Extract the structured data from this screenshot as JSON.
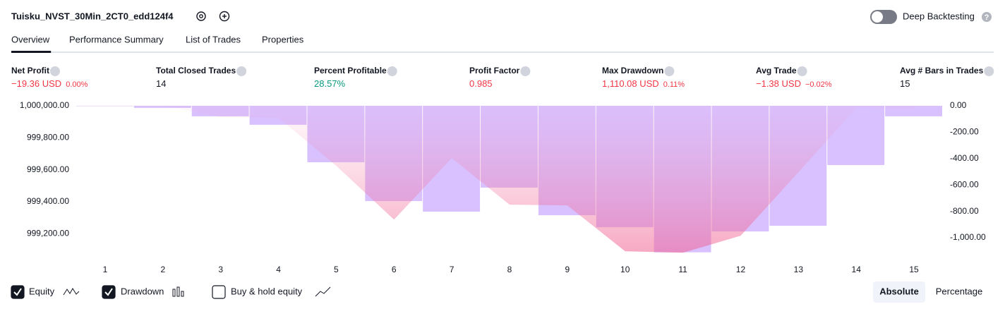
{
  "header": {
    "title": "Tuisku_NVST_30Min_2CT0_edd124f4",
    "deep_backtesting": "Deep Backtesting",
    "deep_backtesting_on": false
  },
  "tabs": {
    "items": [
      "Overview",
      "Performance Summary",
      "List of Trades",
      "Properties"
    ],
    "active": 0
  },
  "metrics": [
    {
      "label": "Net Profit",
      "value": "−19.36 USD",
      "pct": "0.00%",
      "color": "#f23645"
    },
    {
      "label": "Total Closed Trades",
      "value": "14",
      "color": "#131722"
    },
    {
      "label": "Percent Profitable",
      "value": "28.57%",
      "color": "#089981"
    },
    {
      "label": "Profit Factor",
      "value": "0.985",
      "color": "#f23645"
    },
    {
      "label": "Max Drawdown",
      "value": "1,110.08 USD",
      "pct": "0.11%",
      "color": "#f23645"
    },
    {
      "label": "Avg Trade",
      "value": "−1.38 USD",
      "pct": "−0.02%",
      "color": "#f23645"
    },
    {
      "label": "Avg # Bars in Trades",
      "value": "15",
      "color": "#131722"
    }
  ],
  "chart_data": {
    "type": "bar-line",
    "categories": [
      "1",
      "2",
      "3",
      "4",
      "5",
      "6",
      "7",
      "8",
      "9",
      "10",
      "11",
      "12",
      "13",
      "14",
      "15"
    ],
    "series": [
      {
        "name": "Equity",
        "kind": "line",
        "color": "#f23645",
        "visible": true,
        "values": [
          1000000,
          1000000,
          999929,
          999925,
          999625,
          999289,
          999673,
          999382,
          999378,
          999091,
          999082,
          999188,
          999585,
          999987,
          999980.64
        ]
      },
      {
        "name": "Drawdown",
        "kind": "bar",
        "axis": "y2",
        "color": "#c9a6ff",
        "visible": true,
        "values": [
          -3,
          -16,
          -80,
          -144,
          -428,
          -722,
          -802,
          -620,
          -829,
          -920,
          -1110.08,
          -952,
          -909,
          -449,
          -80
        ]
      }
    ],
    "ylim": [
      999030,
      1000044
    ],
    "yticks": [
      {
        "value": 1000000,
        "label": "1,000,000.00"
      },
      {
        "value": 999800,
        "label": "999,800.00"
      },
      {
        "value": 999600,
        "label": "999,600.00"
      },
      {
        "value": 999400,
        "label": "999,400.00"
      },
      {
        "value": 999200,
        "label": "999,200.00"
      }
    ],
    "y2lim": [
      -1176,
      53
    ],
    "y2ticks": [
      {
        "value": 0,
        "label": "0.00"
      },
      {
        "value": -200,
        "label": "-200.00"
      },
      {
        "value": -400,
        "label": "-400.00"
      },
      {
        "value": -600,
        "label": "-600.00"
      },
      {
        "value": -800,
        "label": "-800.00"
      },
      {
        "value": -1000,
        "label": "-1,000.00"
      }
    ]
  },
  "controls": {
    "buy_hold": "Buy & hold equity",
    "buy_hold_checked": false,
    "absolute": "Absolute",
    "percentage": "Percentage"
  }
}
